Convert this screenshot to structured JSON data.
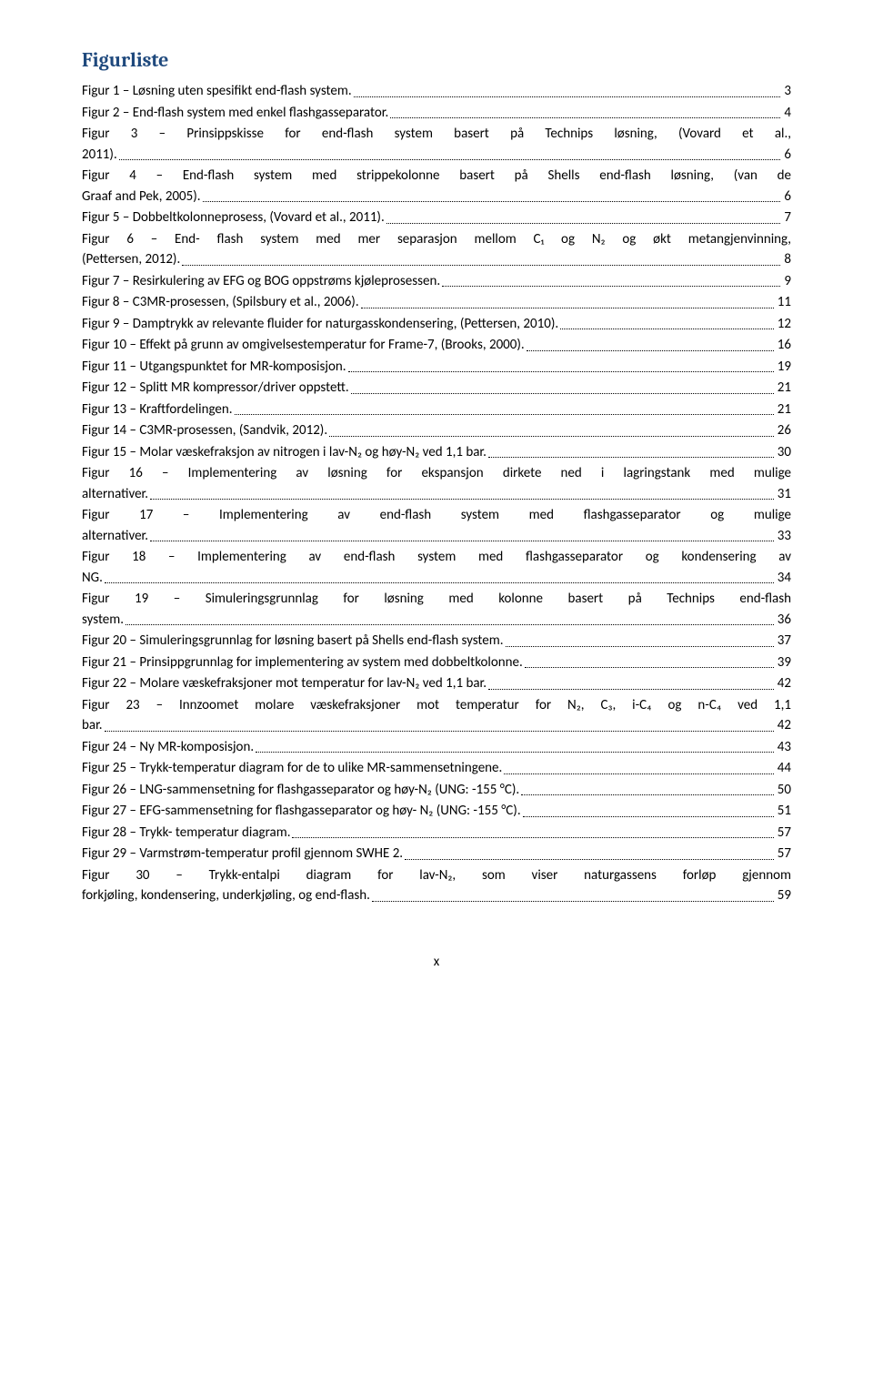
{
  "heading": "Figurliste",
  "entries": [
    {
      "lines": [
        "Figur 1 – Løsning uten spesifikt end-flash system."
      ],
      "page": "3"
    },
    {
      "lines": [
        "Figur 2 – End-flash system med enkel flashgasseparator."
      ],
      "page": "4"
    },
    {
      "lines": [
        "Figur 3 – Prinsippskisse for end-flash system basert på Technips løsning, (Vovard et al.,",
        "2011)."
      ],
      "page": "6"
    },
    {
      "lines": [
        "Figur 4 – End-flash system med strippekolonne basert på Shells end-flash løsning, (van de",
        "Graaf and Pek, 2005)."
      ],
      "page": "6"
    },
    {
      "lines": [
        "Figur 5 – Dobbeltkolonneprosess, (Vovard et al., 2011)."
      ],
      "page": "7"
    },
    {
      "lines": [
        "Figur 6 – End- flash system med mer separasjon mellom C₁ og N₂ og økt metangjenvinning,",
        "(Pettersen, 2012)."
      ],
      "page": "8"
    },
    {
      "lines": [
        "Figur 7 – Resirkulering av EFG og BOG oppstrøms kjøleprosessen."
      ],
      "page": "9"
    },
    {
      "lines": [
        "Figur 8 – C3MR-prosessen, (Spilsbury et al., 2006)."
      ],
      "page": "11"
    },
    {
      "lines": [
        "Figur 9 – Damptrykk av relevante fluider for naturgasskondensering, (Pettersen, 2010)."
      ],
      "page": "12"
    },
    {
      "lines": [
        "Figur 10 – Effekt på grunn av omgivelsestemperatur for Frame-7, (Brooks, 2000)."
      ],
      "page": "16"
    },
    {
      "lines": [
        "Figur 11 – Utgangspunktet for MR-komposisjon."
      ],
      "page": "19"
    },
    {
      "lines": [
        "Figur 12 – Splitt MR kompressor/driver oppstett."
      ],
      "page": "21"
    },
    {
      "lines": [
        "Figur 13 – Kraftfordelingen."
      ],
      "page": "21"
    },
    {
      "lines": [
        "Figur 14 – C3MR-prosessen, (Sandvik, 2012)."
      ],
      "page": "26"
    },
    {
      "lines": [
        "Figur 15 – Molar væskefraksjon av nitrogen i lav-N₂ og høy-N₂ ved 1,1 bar."
      ],
      "page": "30"
    },
    {
      "lines": [
        "Figur 16 – Implementering av løsning for ekspansjon dirkete ned i lagringstank med mulige",
        "alternativer."
      ],
      "page": "31"
    },
    {
      "lines": [
        "Figur 17 – Implementering av end-flash system med flashgasseparator og mulige",
        "alternativer."
      ],
      "page": "33"
    },
    {
      "lines": [
        "Figur 18 – Implementering av end-flash system med flashgasseparator og kondensering av",
        "NG."
      ],
      "page": "34"
    },
    {
      "lines": [
        "Figur 19 – Simuleringsgrunnlag for løsning med kolonne basert på Technips end-flash",
        "system."
      ],
      "page": "36"
    },
    {
      "lines": [
        "Figur 20 – Simuleringsgrunnlag for løsning basert på Shells end-flash system."
      ],
      "page": "37"
    },
    {
      "lines": [
        "Figur 21 – Prinsippgrunnlag for implementering av system med dobbeltkolonne."
      ],
      "page": "39"
    },
    {
      "lines": [
        "Figur 22 – Molare væskefraksjoner mot temperatur for lav-N₂ ved 1,1 bar."
      ],
      "page": "42"
    },
    {
      "lines": [
        "Figur 23 – Innzoomet molare væskefraksjoner mot temperatur for N₂, C₃, i-C₄ og n-C₄ ved 1,1",
        "bar."
      ],
      "page": "42"
    },
    {
      "lines": [
        "Figur 24 – Ny MR-komposisjon."
      ],
      "page": "43"
    },
    {
      "lines": [
        "Figur 25 – Trykk-temperatur diagram for de to ulike MR-sammensetningene."
      ],
      "page": "44"
    },
    {
      "lines": [
        "Figur 26 – LNG-sammensetning for flashgasseparator og høy-N₂ (UNG: -155 °C)."
      ],
      "page": "50"
    },
    {
      "lines": [
        "Figur 27 – EFG-sammensetning for flashgasseparator og høy- N₂ (UNG: -155 °C)."
      ],
      "page": "51"
    },
    {
      "lines": [
        "Figur 28 – Trykk- temperatur diagram."
      ],
      "page": "57"
    },
    {
      "lines": [
        "Figur 29 – Varmstrøm-temperatur profil gjennom SWHE 2."
      ],
      "page": "57"
    },
    {
      "lines": [
        "Figur 30 – Trykk-entalpi diagram for lav-N₂, som viser naturgassens forløp gjennom",
        "forkjøling, kondensering, underkjøling, og end-flash."
      ],
      "page": "59"
    }
  ],
  "footer": "x"
}
